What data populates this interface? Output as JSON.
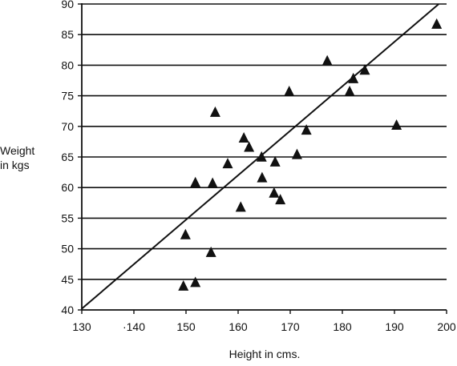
{
  "chart_data": {
    "type": "scatter",
    "xlabel": "Height in cms.",
    "ylabel_lines": [
      "Weight",
      "in kgs"
    ],
    "xlim": [
      130,
      200
    ],
    "ylim": [
      40,
      90
    ],
    "x_ticks": [
      "130",
      "·140",
      "150",
      "160",
      "170",
      "180",
      "190",
      "200"
    ],
    "y_ticks": [
      "40",
      "45",
      "50",
      "55",
      "60",
      "65",
      "70",
      "75",
      "80",
      "85",
      "90"
    ],
    "grid": "horizontal",
    "marker": "triangle",
    "color": "#111111",
    "points": [
      {
        "x": 149.5,
        "y": 43.8
      },
      {
        "x": 151.8,
        "y": 44.4
      },
      {
        "x": 149.9,
        "y": 52.2
      },
      {
        "x": 154.8,
        "y": 49.3
      },
      {
        "x": 151.8,
        "y": 60.7
      },
      {
        "x": 155.1,
        "y": 60.6
      },
      {
        "x": 155.6,
        "y": 72.2
      },
      {
        "x": 158.0,
        "y": 63.8
      },
      {
        "x": 160.5,
        "y": 56.7
      },
      {
        "x": 161.1,
        "y": 68.0
      },
      {
        "x": 162.1,
        "y": 66.5
      },
      {
        "x": 164.5,
        "y": 64.9
      },
      {
        "x": 164.6,
        "y": 61.5
      },
      {
        "x": 166.9,
        "y": 59.0
      },
      {
        "x": 167.1,
        "y": 64.1
      },
      {
        "x": 168.1,
        "y": 57.9
      },
      {
        "x": 169.8,
        "y": 75.6
      },
      {
        "x": 171.3,
        "y": 65.3
      },
      {
        "x": 173.1,
        "y": 69.3
      },
      {
        "x": 177.1,
        "y": 80.6
      },
      {
        "x": 181.4,
        "y": 75.6
      },
      {
        "x": 182.1,
        "y": 77.7
      },
      {
        "x": 184.3,
        "y": 79.1
      },
      {
        "x": 190.4,
        "y": 70.1
      },
      {
        "x": 198.1,
        "y": 86.6
      }
    ],
    "trend_line": {
      "x": [
        130,
        198.5
      ],
      "y": [
        40.2,
        90
      ]
    }
  }
}
